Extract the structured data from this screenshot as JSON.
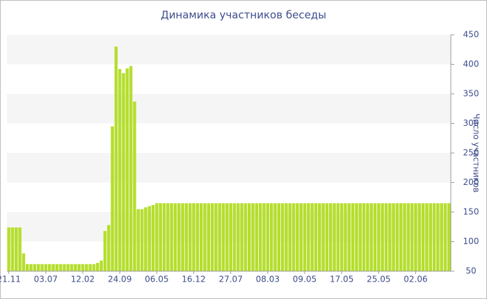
{
  "chart_data": {
    "type": "bar",
    "title": "Динамика участников беседы",
    "y_label": "Число участников",
    "categories": [
      "21.11",
      null,
      null,
      null,
      null,
      null,
      null,
      null,
      null,
      null,
      "03.07",
      null,
      null,
      null,
      null,
      null,
      null,
      null,
      null,
      null,
      "12.02",
      null,
      null,
      null,
      null,
      null,
      null,
      null,
      null,
      null,
      "24.09",
      null,
      null,
      null,
      null,
      null,
      null,
      null,
      null,
      null,
      "06.05",
      null,
      null,
      null,
      null,
      null,
      null,
      null,
      null,
      null,
      "16.12",
      null,
      null,
      null,
      null,
      null,
      null,
      null,
      null,
      null,
      "27.07",
      null,
      null,
      null,
      null,
      null,
      null,
      null,
      null,
      null,
      "08.03",
      null,
      null,
      null,
      null,
      null,
      null,
      null,
      null,
      null,
      "09.05",
      null,
      null,
      null,
      null,
      null,
      null,
      null,
      null,
      null,
      "17.05",
      null,
      null,
      null,
      null,
      null,
      null,
      null,
      null,
      null,
      "25.05",
      null,
      null,
      null,
      null,
      null,
      null,
      null,
      null,
      null,
      "02.06",
      null,
      null,
      null,
      null,
      null,
      null,
      null,
      null,
      null
    ],
    "values": [
      124,
      124,
      124,
      124,
      80,
      62,
      62,
      62,
      62,
      62,
      62,
      62,
      62,
      62,
      62,
      62,
      62,
      62,
      62,
      62,
      62,
      62,
      62,
      62,
      64,
      68,
      118,
      128,
      295,
      430,
      392,
      385,
      393,
      397,
      337,
      155,
      155,
      158,
      160,
      162,
      165,
      165,
      165,
      165,
      165,
      165,
      165,
      165,
      165,
      165,
      165,
      165,
      165,
      165,
      165,
      165,
      165,
      165,
      165,
      165,
      165,
      165,
      165,
      165,
      165,
      165,
      165,
      165,
      165,
      165,
      165,
      165,
      165,
      165,
      165,
      165,
      165,
      165,
      165,
      165,
      165,
      165,
      165,
      165,
      165,
      165,
      165,
      165,
      165,
      165,
      165,
      165,
      165,
      165,
      165,
      165,
      165,
      165,
      165,
      165,
      165,
      165,
      165,
      165,
      165,
      165,
      165,
      165,
      165,
      165,
      165,
      165,
      165,
      165,
      165,
      165,
      165,
      165,
      165,
      165
    ],
    "color": "#b5de2e",
    "ylim": [
      50,
      450
    ],
    "yticks": [
      50,
      100,
      150,
      200,
      250,
      300,
      350,
      400,
      450
    ],
    "grid": true,
    "y_axis_side": "right"
  }
}
